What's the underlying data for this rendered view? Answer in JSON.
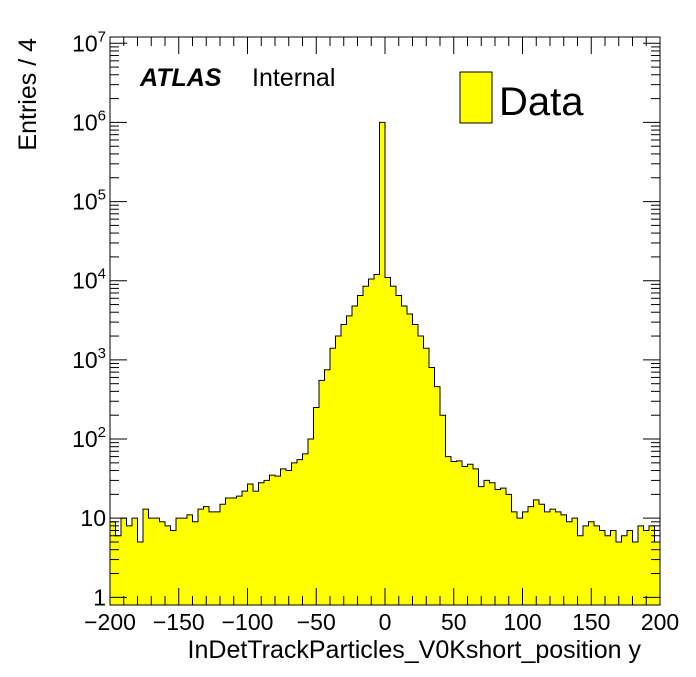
{
  "chart_data": {
    "type": "bar",
    "title": "",
    "xlabel": "InDetTrackParticles_V0Kshort_position y",
    "ylabel": "Entries / 4",
    "xlim": [
      -200,
      200
    ],
    "ylim": [
      0.8,
      12000000
    ],
    "yscale": "log",
    "bin_width": 4,
    "x_ticks": [
      "−200",
      "−150",
      "−100",
      "−50",
      "0",
      "50",
      "100",
      "150",
      "200"
    ],
    "x_tick_values": [
      -200,
      -150,
      -100,
      -50,
      0,
      50,
      100,
      150,
      200
    ],
    "y_ticks": [
      {
        "value": 1,
        "base": "1",
        "exp": ""
      },
      {
        "value": 10,
        "base": "10",
        "exp": ""
      },
      {
        "value": 100,
        "base": "10",
        "exp": "2"
      },
      {
        "value": 1000,
        "base": "10",
        "exp": "3"
      },
      {
        "value": 10000,
        "base": "10",
        "exp": "4"
      },
      {
        "value": 100000,
        "base": "10",
        "exp": "5"
      },
      {
        "value": 1000000,
        "base": "10",
        "exp": "6"
      },
      {
        "value": 10000000,
        "base": "10",
        "exp": "7"
      }
    ],
    "atlas_label": "ATLAS",
    "atlas_sublabel": "Internal",
    "legend": {
      "label": "Data",
      "position": "top-right"
    },
    "colors": {
      "fill": "#ffff00",
      "line": "#000000"
    },
    "series": [
      {
        "name": "Data",
        "x": [
          -198,
          -194,
          -190,
          -186,
          -182,
          -178,
          -174,
          -170,
          -166,
          -162,
          -158,
          -154,
          -150,
          -146,
          -142,
          -138,
          -134,
          -130,
          -126,
          -122,
          -118,
          -114,
          -110,
          -106,
          -102,
          -98,
          -94,
          -90,
          -86,
          -82,
          -78,
          -74,
          -70,
          -66,
          -62,
          -58,
          -54,
          -50,
          -46,
          -42,
          -38,
          -34,
          -30,
          -26,
          -22,
          -18,
          -14,
          -10,
          -6,
          -2,
          2,
          6,
          10,
          14,
          18,
          22,
          26,
          30,
          34,
          38,
          42,
          46,
          50,
          54,
          58,
          62,
          66,
          70,
          74,
          78,
          82,
          86,
          90,
          94,
          98,
          102,
          106,
          110,
          114,
          118,
          122,
          126,
          130,
          134,
          138,
          142,
          146,
          150,
          154,
          158,
          162,
          166,
          170,
          174,
          178,
          182,
          186,
          190,
          194,
          198
        ],
        "values": [
          9,
          6,
          10,
          8,
          10,
          5,
          13,
          10,
          10,
          9,
          8,
          7,
          10,
          10,
          11,
          9,
          13,
          14,
          12,
          12,
          15,
          18,
          18,
          19,
          22,
          27,
          22,
          28,
          30,
          35,
          34,
          42,
          40,
          50,
          55,
          65,
          100,
          250,
          550,
          750,
          1400,
          2000,
          2800,
          3600,
          4800,
          6500,
          8500,
          10500,
          12000,
          1000000,
          11000,
          8500,
          6500,
          4800,
          3800,
          2800,
          2000,
          1400,
          800,
          460,
          200,
          60,
          52,
          53,
          45,
          48,
          42,
          25,
          30,
          28,
          23,
          24,
          20,
          12,
          10,
          12,
          14,
          17,
          15,
          12,
          13,
          12,
          11,
          9,
          10,
          6,
          8,
          9,
          8,
          7,
          6,
          7,
          5,
          6,
          7,
          5,
          8,
          7,
          8,
          5
        ]
      }
    ]
  }
}
